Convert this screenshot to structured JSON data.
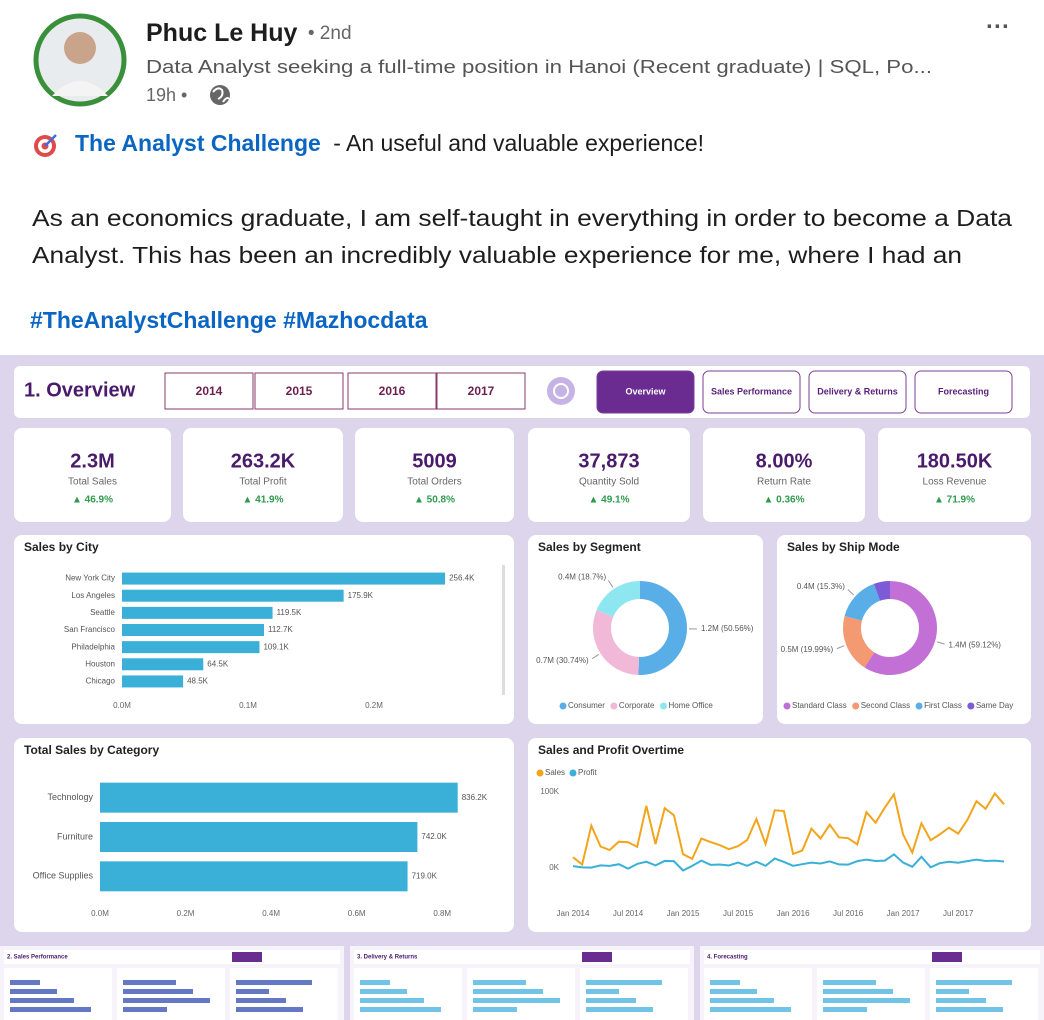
{
  "post": {
    "author": "Phuc Le Huy",
    "degree": "• 2nd",
    "headline": "Data Analyst seeking a full-time position in Hanoi (Recent graduate) | SQL, Po...",
    "time": "19h •",
    "menu": "···",
    "title_link": "The Analyst Challenge",
    "title_rest": "- An useful and valuable experience!",
    "body_lines": [
      "As an economics graduate, I am self-taught in everything in order to become a Data",
      "Analyst.  This has been an incredibly valuable experience for me, where I had an"
    ],
    "hashtags": "#TheAnalystChallenge #Mazhocdata"
  },
  "dashboard": {
    "title": "1. Overview",
    "years": [
      "2014",
      "2015",
      "2016",
      "2017"
    ],
    "nav": [
      "Overview",
      "Sales Performance",
      "Delivery & Returns",
      "Forecasting"
    ],
    "kpis": [
      {
        "value": "2.3M",
        "label": "Total Sales",
        "change": "▲ 46.9%"
      },
      {
        "value": "263.2K",
        "label": "Total Profit",
        "change": "▲ 41.9%"
      },
      {
        "value": "5009",
        "label": "Total Orders",
        "change": "▲ 50.8%"
      },
      {
        "value": "37,873",
        "label": "Quantity Sold",
        "change": "▲ 49.1%"
      },
      {
        "value": "8.00%",
        "label": "Return Rate",
        "change": "▲ 0.36%"
      },
      {
        "value": "180.50K",
        "label": "Loss Revenue",
        "change": "▲ 71.9%"
      }
    ]
  },
  "chart_data": [
    {
      "type": "hbar",
      "title": "Sales by City",
      "categories": [
        "New York City",
        "Los Angeles",
        "Seattle",
        "San Francisco",
        "Philadelphia",
        "Houston",
        "Chicago"
      ],
      "values": [
        256400,
        175900,
        119500,
        112700,
        109100,
        64500,
        48500
      ],
      "value_labels": [
        "256.4K",
        "175.9K",
        "119.5K",
        "112.7K",
        "109.1K",
        "64.5K",
        "48.5K"
      ],
      "color": "#3ab0d8",
      "xlim": [
        0,
        300000
      ],
      "xticks": [
        {
          "value": 0,
          "label": "0.0M"
        },
        {
          "value": 100000,
          "label": "0.1M"
        },
        {
          "value": 200000,
          "label": "0.2M"
        }
      ]
    },
    {
      "type": "donut",
      "title": "Sales by Segment",
      "categories": [
        "Consumer",
        "Corporate",
        "Home Office"
      ],
      "values": [
        50.56,
        30.74,
        18.7
      ],
      "value_labels": [
        "1.2M (50.56%)",
        "0.7M (30.74%)",
        "0.4M (18.7%)"
      ],
      "colors": [
        "#5aaee8",
        "#f2b8d8",
        "#8ee7f0"
      ]
    },
    {
      "type": "donut",
      "title": "Sales by Ship Mode",
      "categories": [
        "Standard Class",
        "Second Class",
        "First Class",
        "Same Day"
      ],
      "values": [
        59.12,
        19.99,
        15.3,
        5.59
      ],
      "value_labels": [
        "1.4M (59.12%)",
        "0.5M (19.99%)",
        "0.4M (15.3%)",
        null
      ],
      "colors": [
        "#c26fd6",
        "#f39a73",
        "#5aaee8",
        "#7e5bd6"
      ]
    },
    {
      "type": "hbar",
      "title": "Total Sales by Category",
      "categories": [
        "Technology",
        "Furniture",
        "Office Supplies"
      ],
      "values": [
        836200,
        742000,
        719000
      ],
      "value_labels": [
        "836.2K",
        "742.0K",
        "719.0K"
      ],
      "color": "#3ab0d8",
      "xlim": [
        0,
        900000
      ],
      "xticks": [
        {
          "value": 0,
          "label": "0.0M"
        },
        {
          "value": 200000,
          "label": "0.2M"
        },
        {
          "value": 400000,
          "label": "0.4M"
        },
        {
          "value": 600000,
          "label": "0.6M"
        },
        {
          "value": 800000,
          "label": "0.8M"
        }
      ]
    },
    {
      "type": "line",
      "title": "Sales and Profit Overtime",
      "categories": [
        "Jan 2014",
        null,
        null,
        null,
        null,
        null,
        "Jul 2014",
        null,
        null,
        null,
        null,
        null,
        "Jan 2015",
        null,
        null,
        null,
        null,
        null,
        "Jul 2015",
        null,
        null,
        null,
        null,
        null,
        "Jan 2016",
        null,
        null,
        null,
        null,
        null,
        "Jul 2016",
        null,
        null,
        null,
        null,
        null,
        "Jan 2017",
        null,
        null,
        null,
        null,
        null,
        "Jul 2017",
        null,
        null,
        null,
        null,
        null
      ],
      "series": [
        {
          "name": "Sales",
          "color": "#f2a51c",
          "values": [
            14237,
            4520,
            55691,
            28295,
            23648,
            34595,
            33946,
            27909,
            81777,
            31453,
            78629,
            69546,
            18174,
            11951,
            38726,
            34195,
            30131,
            24797,
            28765,
            36898,
            64595,
            31404,
            75972,
            74919,
            18542,
            22978,
            51715,
            38750,
            56988,
            40344,
            39262,
            31115,
            73410,
            59687,
            79411,
            96999,
            43971,
            20301,
            58872,
            36521,
            44261,
            52981,
            45264,
            63121,
            87866,
            77777,
            98000,
            83829
          ]
        },
        {
          "name": "Profit",
          "color": "#3ab0d8",
          "values": [
            2450,
            862,
            499,
            3489,
            2739,
            4977,
            -841,
            5318,
            8328,
            3448,
            9292,
            8983,
            -3281,
            2814,
            9732,
            4187,
            4668,
            3335,
            7212,
            2862,
            8209,
            2817,
            12474,
            8016,
            2824,
            5004,
            6993,
            5916,
            8662,
            4750,
            4432,
            9041,
            10991,
            9275,
            9690,
            17885,
            7140,
            1613,
            14752,
            933,
            6342,
            8223,
            6952,
            9041,
            10991,
            9275,
            9690,
            8483
          ]
        }
      ],
      "ylim": [
        -50000,
        100000
      ],
      "yticks": [
        {
          "value": 0,
          "label": "0K"
        },
        {
          "value": 100000,
          "label": "100K"
        }
      ]
    }
  ],
  "thumbnails": [
    {
      "title": "2. Sales Performance"
    },
    {
      "title": "3. Delivery & Returns"
    },
    {
      "title": "4. Forecasting"
    }
  ]
}
